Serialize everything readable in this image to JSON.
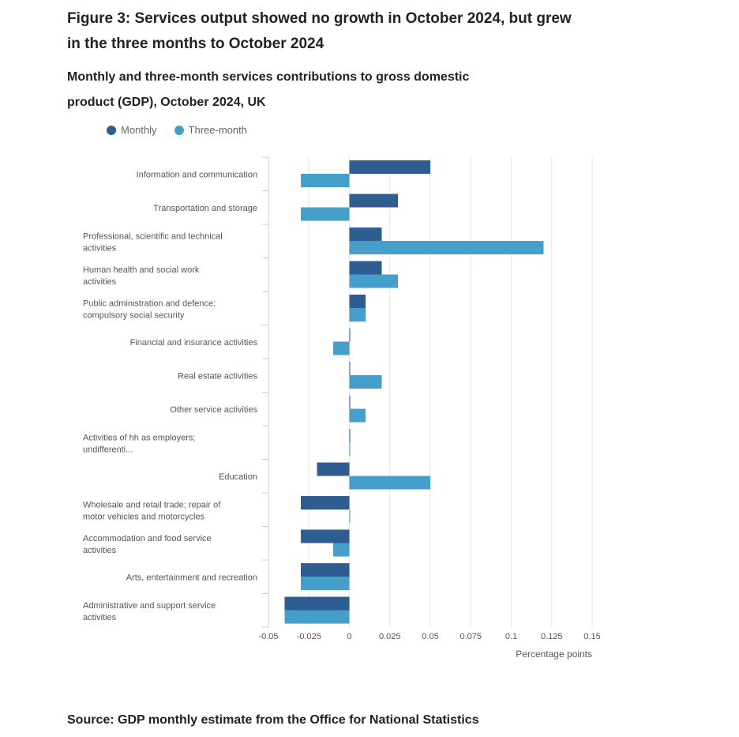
{
  "title": "Figure 3: Services output showed no growth in October 2024, but grew in the three months to October 2024",
  "subtitle": "Monthly and three-month services contributions to gross domestic product (GDP), October 2024, UK",
  "source": "Source: GDP monthly estimate from the Office for National Statistics",
  "colors": {
    "monthly": "#2e5e91",
    "three_month": "#469fcb",
    "grid": "#e6e6e6",
    "axis_text": "#555555"
  },
  "chart_data": {
    "type": "bar",
    "orientation": "horizontal",
    "categories": [
      "Information and communication",
      "Transportation and storage",
      "Professional, scientific and technical activities",
      "Human health and social work activities",
      "Public administration and defence; compulsory social security",
      "Financial and insurance activities",
      "Real estate activities",
      "Other service activities",
      "Activities of hh as employers; undifferenti...",
      "Education",
      "Wholesale and retail trade; repair of motor vehicles and motorcycles",
      "Accommodation and food service activities",
      "Arts, entertainment and recreation",
      "Administrative and support service activities"
    ],
    "series": [
      {
        "name": "Monthly",
        "values": [
          0.05,
          0.03,
          0.02,
          0.02,
          0.01,
          0.0,
          0.0,
          0.0,
          0.0,
          -0.02,
          -0.03,
          -0.03,
          -0.03,
          -0.04
        ]
      },
      {
        "name": "Three-month",
        "values": [
          -0.03,
          -0.03,
          0.12,
          0.03,
          0.01,
          -0.01,
          0.02,
          0.01,
          0.0,
          0.05,
          0.0,
          -0.01,
          -0.03,
          -0.04
        ]
      }
    ],
    "xlabel": "Percentage points",
    "ylabel": "",
    "xlim": [
      -0.05,
      0.15
    ],
    "xticks": [
      "-0.05",
      "-0.025",
      "0",
      "0.025",
      "0.05",
      "0.075",
      "0.1",
      "0.125",
      "0.15"
    ],
    "legend_position": "top-left",
    "grid": true
  }
}
